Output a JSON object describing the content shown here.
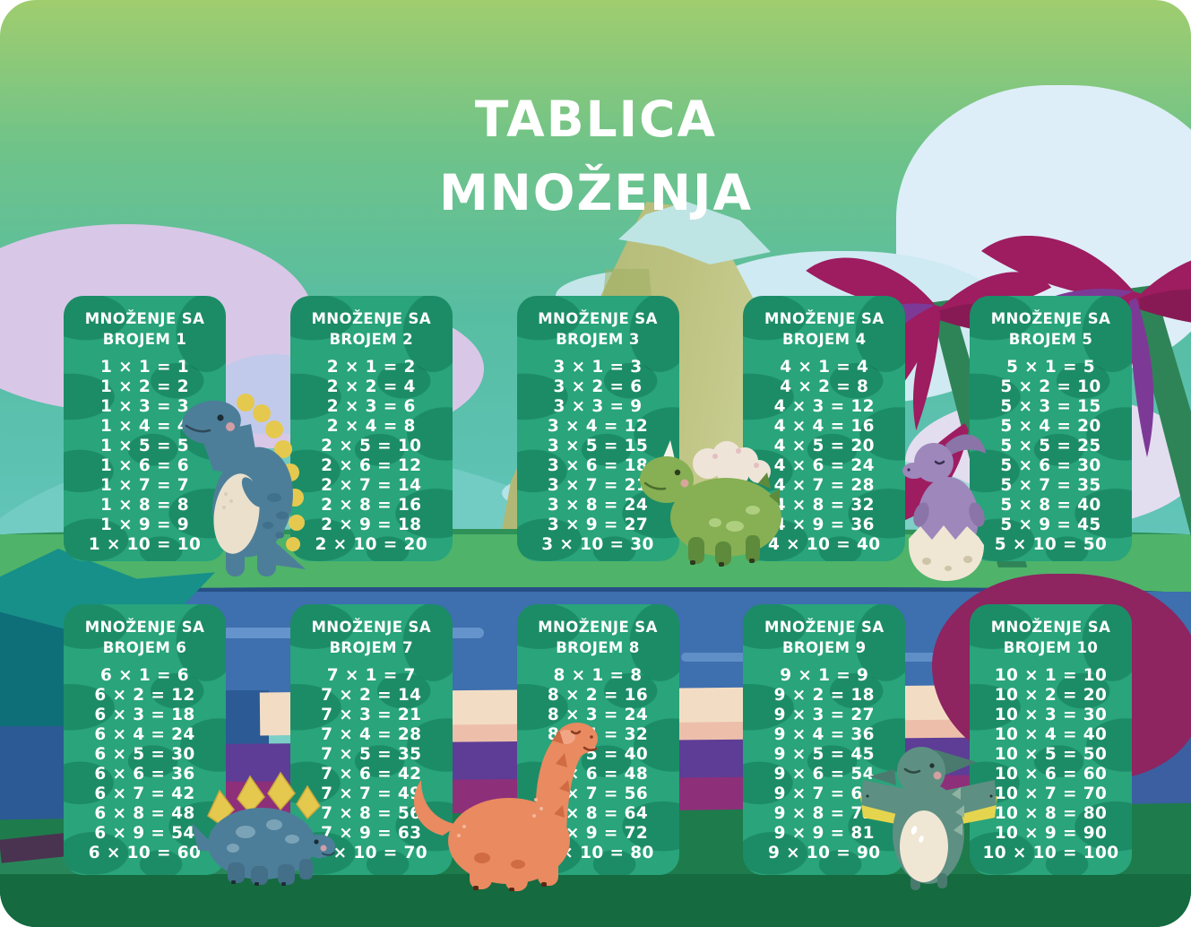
{
  "title": {
    "line1": "TABLICA",
    "line2": "MNOŽENJA"
  },
  "cards": [
    {
      "number": 1,
      "header_line1": "MNOŽENJE SA",
      "header_line2": "BROJEM 1",
      "equations": [
        "1 × 1 = 1",
        "1 × 2 = 2",
        "1 × 3 = 3",
        "1 × 4 = 4",
        "1 × 5 = 5",
        "1 × 6 = 6",
        "1 × 7 = 7",
        "1 × 8 = 8",
        "1 × 9 = 9",
        "1 × 10 = 10"
      ]
    },
    {
      "number": 2,
      "header_line1": "MNOŽENJE SA",
      "header_line2": "BROJEM 2",
      "equations": [
        "2 × 1 = 2",
        "2 × 2 = 4",
        "2 × 3 = 6",
        "2 × 4 = 8",
        "2 × 5 = 10",
        "2 × 6 = 12",
        "2 × 7 = 14",
        "2 × 8 = 16",
        "2 × 9 = 18",
        "2 × 10 = 20"
      ]
    },
    {
      "number": 3,
      "header_line1": "MNOŽENJE SA",
      "header_line2": "BROJEM 3",
      "equations": [
        "3 × 1 = 3",
        "3 × 2 = 6",
        "3 × 3 = 9",
        "3 × 4 = 12",
        "3 × 5 = 15",
        "3 × 6 = 18",
        "3 × 7 = 21",
        "3 × 8 = 24",
        "3 × 9 = 27",
        "3 × 10 = 30"
      ]
    },
    {
      "number": 4,
      "header_line1": "MNOŽENJE SA",
      "header_line2": "BROJEM 4",
      "equations": [
        "4 × 1 = 4",
        "4 × 2 = 8",
        "4 × 3 = 12",
        "4 × 4 = 16",
        "4 × 5 = 20",
        "4 × 6 = 24",
        "4 × 7 = 28",
        "4 × 8 = 32",
        "4 × 9 = 36",
        "4 × 10 = 40"
      ]
    },
    {
      "number": 5,
      "header_line1": "MNOŽENJE SA",
      "header_line2": "BROJEM 5",
      "equations": [
        "5 × 1 = 5",
        "5 × 2 = 10",
        "5 × 3 = 15",
        "5 × 4 = 20",
        "5 × 5 = 25",
        "5 × 6 = 30",
        "5 × 7 = 35",
        "5 × 8 = 40",
        "5 × 9 = 45",
        "5 × 10 = 50"
      ]
    },
    {
      "number": 6,
      "header_line1": "MNOŽENJE SA",
      "header_line2": "BROJEM 6",
      "equations": [
        "6 × 1 = 6",
        "6 × 2 = 12",
        "6 × 3 = 18",
        "6 × 4 = 24",
        "6 × 5 = 30",
        "6 × 6 = 36",
        "6 × 7 = 42",
        "6 × 8 = 48",
        "6 × 9 = 54",
        "6 × 10 = 60"
      ]
    },
    {
      "number": 7,
      "header_line1": "MNOŽENJE SA",
      "header_line2": "BROJEM 7",
      "equations": [
        "7 × 1 = 7",
        "7 × 2 = 14",
        "7 × 3 = 21",
        "7 × 4 = 28",
        "7 × 5 = 35",
        "7 × 6 = 42",
        "7 × 7 = 49",
        "7 × 8 = 56",
        "7 × 9 = 63",
        "7 × 10 = 70"
      ]
    },
    {
      "number": 8,
      "header_line1": "MNOŽENJE SA",
      "header_line2": "BROJEM 8",
      "equations": [
        "8 × 1 = 8",
        "8 × 2 = 16",
        "8 × 3 = 24",
        "8 × 4 = 32",
        "8 × 5 = 40",
        "8 × 6 = 48",
        "8 × 7 = 56",
        "8 × 8 = 64",
        "8 × 9 = 72",
        "8 × 10 = 80"
      ]
    },
    {
      "number": 9,
      "header_line1": "MNOŽENJE SA",
      "header_line2": "BROJEM 9",
      "equations": [
        "9 × 1 = 9",
        "9 × 2 = 18",
        "9 × 3 = 27",
        "9 × 4 = 36",
        "9 × 5 = 45",
        "9 × 6 = 54",
        "9 × 7 = 63",
        "9 × 8 = 72",
        "9 × 9 = 81",
        "9 × 10 = 90"
      ]
    },
    {
      "number": 10,
      "header_line1": "MNOŽENJE SA",
      "header_line2": "BROJEM 10",
      "equations": [
        "10 × 1 = 10",
        "10 × 2 = 20",
        "10 × 3 = 30",
        "10 × 4 = 40",
        "10 × 5 = 50",
        "10 × 6 = 60",
        "10 × 7 = 70",
        "10 × 8 = 80",
        "10 × 9 = 90",
        "10 × 10 = 100"
      ]
    }
  ],
  "decorations": [
    "blue-trex-dinosaur",
    "green-triceratops-dinosaur",
    "purple-parasaur-hatching-egg",
    "blue-stegosaurus-dinosaur",
    "orange-brontosaurus-dinosaur",
    "teal-pterodactyl-dinosaur",
    "magenta-palm-trees",
    "volcano",
    "clouds",
    "river"
  ],
  "colors": {
    "card_green": "#29a47b",
    "card_camo": "rgba(13,110,79,0.45)",
    "text": "#ffffff",
    "palm_magenta": "#9e1c60",
    "river_blue": "#3e6fae",
    "grass_dark": "#1e7b4b"
  }
}
